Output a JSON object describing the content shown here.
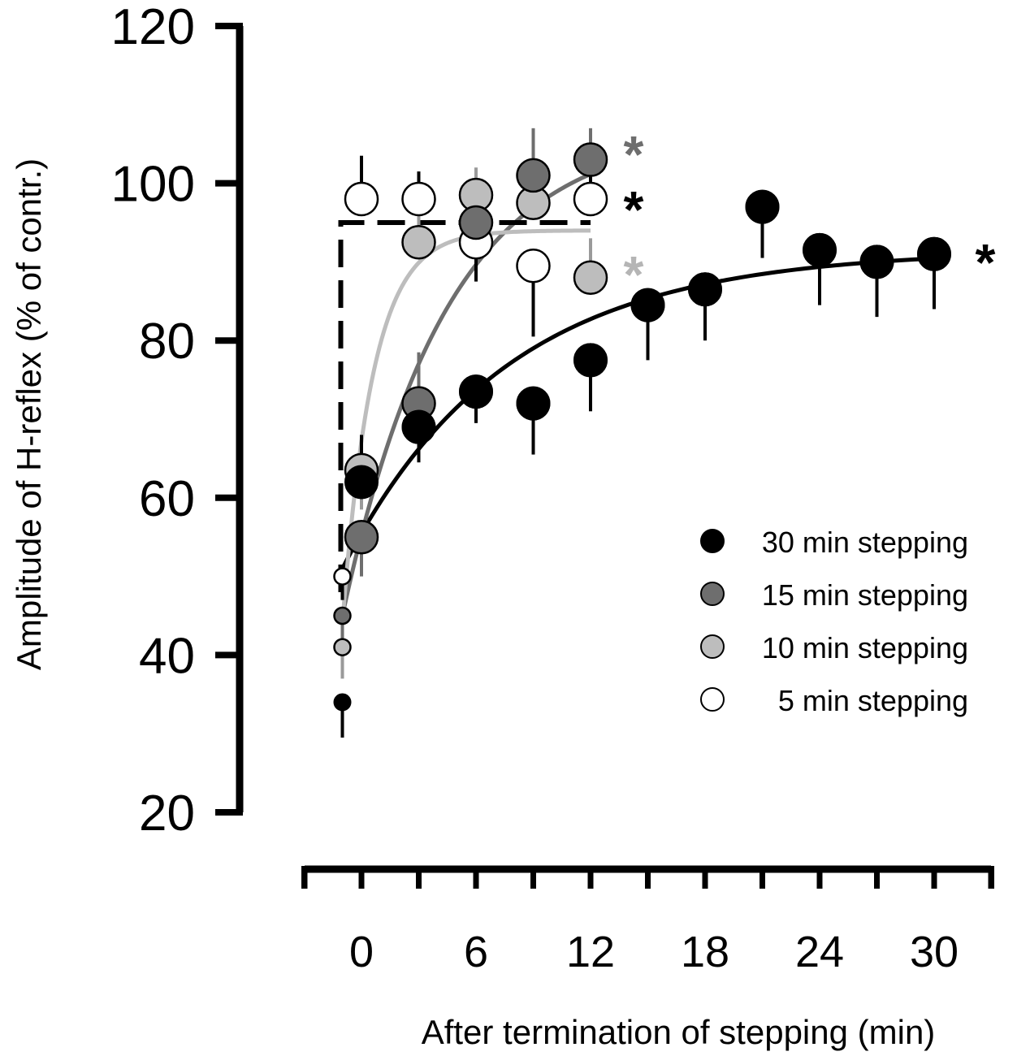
{
  "chart_data": {
    "type": "scatter",
    "title": "",
    "xlabel": "After termination of stepping (min)",
    "ylabel": "Amplitude of H-reflex (% of contr.)",
    "xlim": [
      -2,
      32
    ],
    "ylim": [
      20,
      120
    ],
    "x_ticks": [
      0,
      6,
      12,
      18,
      24,
      30
    ],
    "x_tick_labels": [
      "0",
      "6",
      "12",
      "18",
      "24",
      "30"
    ],
    "y_ticks": [
      20,
      40,
      60,
      80,
      100,
      120
    ],
    "y_tick_labels": [
      "20",
      "40",
      "60",
      "80",
      "100",
      "120"
    ],
    "legend_position": "right",
    "series": [
      {
        "name": "30 min stepping",
        "color": "#000000",
        "x": [
          -1,
          0,
          3,
          6,
          9,
          12,
          15,
          18,
          21,
          24,
          27,
          30
        ],
        "y": [
          34,
          62,
          69,
          73.5,
          72,
          77.5,
          84.5,
          86.5,
          97,
          91.5,
          90,
          91
        ],
        "error_dir": [
          -1,
          1,
          -1,
          -1,
          -1,
          -1,
          -1,
          -1,
          -1,
          -1,
          -1,
          -1
        ],
        "error": [
          4.5,
          6,
          4.5,
          4,
          6.5,
          6.5,
          7,
          6.5,
          6.5,
          7,
          7,
          7
        ],
        "fit": {
          "a": 91.5,
          "b": 40.5,
          "tau": 8.5,
          "x0": -1,
          "x1": 30
        },
        "significance": "*",
        "significance_color": "#000000"
      },
      {
        "name": "15 min stepping",
        "color": "#6e6e6e",
        "x": [
          -1,
          0,
          3,
          6,
          9,
          12
        ],
        "y": [
          45,
          55,
          72,
          95,
          101,
          103
        ],
        "error_dir": [
          -1,
          -1,
          1,
          1,
          1,
          1
        ],
        "error": [
          5,
          5,
          6.5,
          4.5,
          6,
          4
        ],
        "fit": {
          "a": 107,
          "b": 62,
          "tau": 5.5,
          "x0": -1,
          "x1": 12
        },
        "significance": "*",
        "significance_color": "#6e6e6e"
      },
      {
        "name": "10 min stepping",
        "color": "#bdbdbd",
        "x": [
          -1,
          0,
          3,
          6,
          9,
          12
        ],
        "y": [
          41,
          63.5,
          92.5,
          98.5,
          97.5,
          88
        ],
        "error_dir": [
          -1,
          -1,
          1,
          1,
          1,
          1
        ],
        "error": [
          4,
          5,
          4,
          3.5,
          9,
          5
        ],
        "fit": {
          "a": 94,
          "b": 50,
          "tau": 1.6,
          "x0": -1,
          "x1": 12
        },
        "significance": "*",
        "significance_color": "#b5b5b5"
      },
      {
        "name": "5 min stepping",
        "color": "#ffffff",
        "x": [
          -1,
          0,
          3,
          6,
          9,
          12
        ],
        "y": [
          50,
          98,
          98,
          92.5,
          89.5,
          98
        ],
        "error_dir": [
          -1,
          1,
          1,
          -1,
          -1,
          1
        ],
        "error": [
          3,
          5.5,
          3.5,
          5,
          9,
          6
        ],
        "fit": {
          "type": "step",
          "x0": -1,
          "x1": 12,
          "y_low": 48,
          "y_high": 95
        },
        "significance": "*",
        "significance_color": "#000000"
      }
    ],
    "legend_order": [
      "30 min stepping",
      "15 min stepping",
      "10 min stepping",
      "5 min stepping"
    ]
  }
}
